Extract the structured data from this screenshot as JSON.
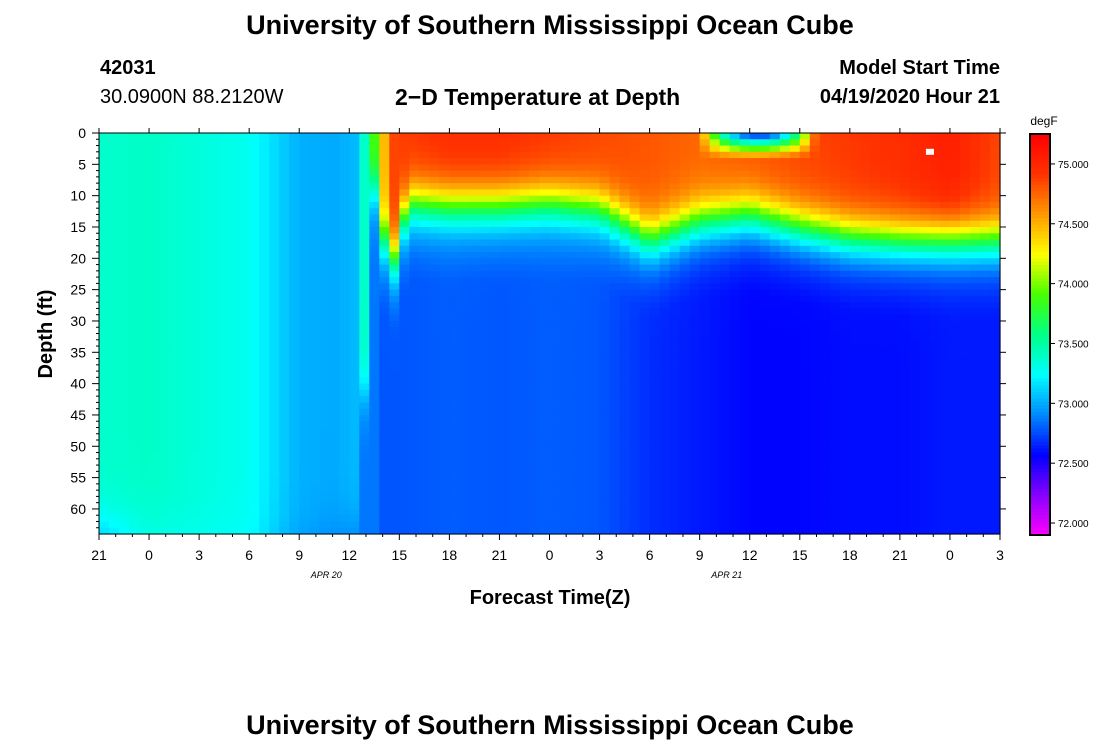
{
  "page": {
    "title_top": "University of Southern Mississippi Ocean Cube",
    "title_bottom": "University of Southern Mississippi Ocean Cube",
    "station_id": "42031",
    "station_coords": "30.0900N 88.2120W",
    "plot_title": "2−D Temperature at Depth",
    "model_start_label": "Model Start Time",
    "model_start_value": "04/19/2020 Hour 21"
  },
  "chart_data": {
    "type": "heatmap",
    "title": "2−D Temperature at Depth",
    "xlabel": "Forecast Time(Z)",
    "ylabel": "Depth (ft)",
    "x_tick_labels": [
      "21",
      "0",
      "3",
      "6",
      "9",
      "12",
      "15",
      "18",
      "21",
      "0",
      "3",
      "6",
      "9",
      "12",
      "15",
      "18",
      "21",
      "0",
      "3"
    ],
    "x_hours": [
      0,
      3,
      6,
      9,
      12,
      15,
      18,
      21,
      24,
      27,
      30,
      33,
      36,
      39,
      42,
      45,
      48,
      51,
      54
    ],
    "date_labels": [
      {
        "text": "APR 20",
        "hour": 15
      },
      {
        "text": "APR 21",
        "hour": 39
      }
    ],
    "y_tick_labels": [
      "0",
      "5",
      "10",
      "15",
      "20",
      "25",
      "30",
      "35",
      "40",
      "45",
      "50",
      "55",
      "60"
    ],
    "y_ticks": [
      0,
      5,
      10,
      15,
      20,
      25,
      30,
      35,
      40,
      45,
      50,
      55,
      60
    ],
    "ylim": [
      0,
      64
    ],
    "xlim": [
      0,
      54
    ],
    "colorbar": {
      "unit": "degF",
      "range": [
        71.9,
        75.25
      ],
      "tick_values": [
        72.0,
        72.5,
        73.0,
        73.5,
        74.0,
        74.5,
        75.0
      ],
      "tick_labels": [
        "72.000",
        "72.500",
        "73.000",
        "73.500",
        "74.000",
        "74.500",
        "75.000"
      ],
      "colors": [
        "#ff00ff",
        "#8800ff",
        "#0000ff",
        "#0088ff",
        "#00ffff",
        "#00ff88",
        "#44ff00",
        "#ffff00",
        "#ff9900",
        "#ff3300",
        "#ff0000"
      ]
    },
    "columns": [
      {
        "hour": 0,
        "surface": 73.38,
        "mld": 62,
        "deep": 73.05
      },
      {
        "hour": 3,
        "surface": 73.4,
        "mld": 62,
        "deep": 73.3
      },
      {
        "hour": 6,
        "surface": 73.34,
        "mld": 62,
        "deep": 73.28
      },
      {
        "hour": 9,
        "surface": 73.28,
        "mld": 62,
        "deep": 73.25
      },
      {
        "hour": 11,
        "surface": 73.1,
        "mld": 62,
        "deep": 73.05
      },
      {
        "hour": 12,
        "surface": 73.02,
        "mld": 62,
        "deep": 72.98
      },
      {
        "hour": 14,
        "surface": 73.0,
        "mld": 62,
        "deep": 72.92
      },
      {
        "hour": 15.5,
        "surface": 73.05,
        "mld": 62,
        "deep": 72.9
      },
      {
        "hour": 16.5,
        "surface": 73.9,
        "mld": 9,
        "deep": 72.9
      },
      {
        "hour": 17.5,
        "surface": 74.85,
        "mld": 22,
        "deep": 72.9
      },
      {
        "hour": 18.5,
        "surface": 74.9,
        "mld": 11,
        "deep": 72.9
      },
      {
        "hour": 21,
        "surface": 74.95,
        "mld": 11.5,
        "deep": 72.92
      },
      {
        "hour": 24,
        "surface": 74.95,
        "mld": 11.5,
        "deep": 72.9
      },
      {
        "hour": 27,
        "surface": 74.9,
        "mld": 11,
        "deep": 72.92
      },
      {
        "hour": 30,
        "surface": 74.85,
        "mld": 12,
        "deep": 72.9
      },
      {
        "hour": 33,
        "surface": 74.8,
        "mld": 17,
        "deep": 72.8
      },
      {
        "hour": 36,
        "surface": 74.75,
        "mld": 14,
        "deep": 72.75
      },
      {
        "hour": 39,
        "surface": 74.8,
        "mld": 13,
        "deep": 72.7
      },
      {
        "hour": 42,
        "surface": 74.85,
        "mld": 15,
        "deep": 72.7
      },
      {
        "hour": 45,
        "surface": 74.9,
        "mld": 16.5,
        "deep": 72.72
      },
      {
        "hour": 48,
        "surface": 74.95,
        "mld": 17,
        "deep": 72.72
      },
      {
        "hour": 51,
        "surface": 75.05,
        "mld": 17,
        "deep": 72.75
      },
      {
        "hour": 54,
        "surface": 74.85,
        "mld": 17,
        "deep": 72.75
      }
    ],
    "cool_patch": {
      "hour_start": 36,
      "hour_end": 43,
      "depth_max": 2.5,
      "min_temp": 72.5
    }
  }
}
